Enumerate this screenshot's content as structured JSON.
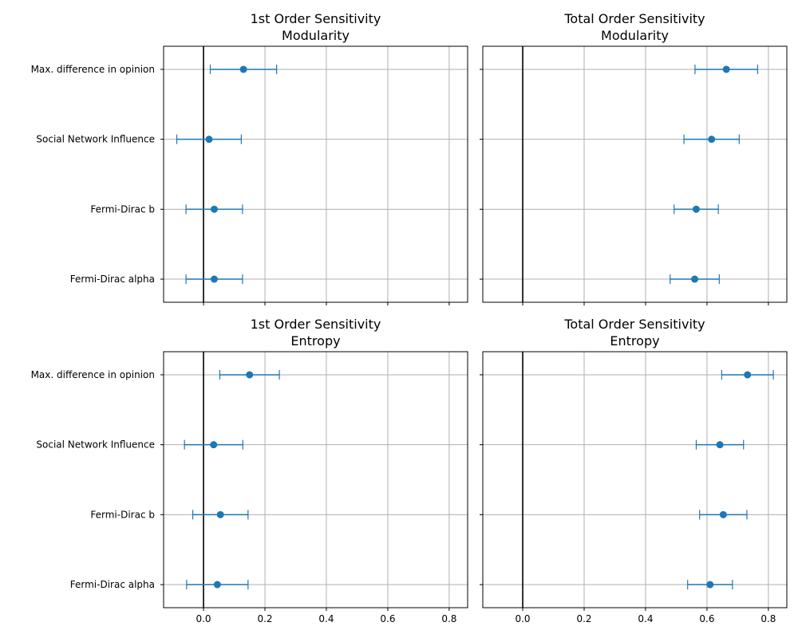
{
  "chart_data": [
    {
      "type": "scatter",
      "title": "1st Order Sensitivity",
      "subtitle": "Modularity",
      "xlim": [
        -0.13,
        0.86
      ],
      "xticks": [
        0.0,
        0.2,
        0.4,
        0.6,
        0.8
      ],
      "xtick_labels": [],
      "categories": [
        "Fermi-Dirac alpha",
        "Fermi-Dirac b",
        "Social Network Influence",
        "Max. difference in opinion"
      ],
      "category_labels_shown": true,
      "values": [
        0.035,
        0.035,
        0.018,
        0.13
      ],
      "error": [
        0.092,
        0.092,
        0.105,
        0.108
      ],
      "reference_line": 0,
      "grid": true,
      "color": "#1f77b4"
    },
    {
      "type": "scatter",
      "title": "Total Order Sensitivity",
      "subtitle": "Modularity",
      "xlim": [
        -0.13,
        0.86
      ],
      "xticks": [
        0.0,
        0.2,
        0.4,
        0.6,
        0.8
      ],
      "xtick_labels": [],
      "categories": [
        "Fermi-Dirac alpha",
        "Fermi-Dirac b",
        "Social Network Influence",
        "Max. difference in opinion"
      ],
      "category_labels_shown": false,
      "values": [
        0.56,
        0.565,
        0.615,
        0.663
      ],
      "error": [
        0.08,
        0.072,
        0.09,
        0.102
      ],
      "reference_line": 0,
      "grid": true,
      "color": "#1f77b4"
    },
    {
      "type": "scatter",
      "title": "1st Order Sensitivity",
      "subtitle": "Entropy",
      "xlim": [
        -0.13,
        0.86
      ],
      "xticks": [
        0.0,
        0.2,
        0.4,
        0.6,
        0.8
      ],
      "xtick_labels": [
        "0.0",
        "0.2",
        "0.4",
        "0.6",
        "0.8"
      ],
      "categories": [
        "Fermi-Dirac alpha",
        "Fermi-Dirac b",
        "Social Network Influence",
        "Max. difference in opinion"
      ],
      "category_labels_shown": true,
      "values": [
        0.045,
        0.055,
        0.033,
        0.15
      ],
      "error": [
        0.1,
        0.09,
        0.095,
        0.097
      ],
      "reference_line": 0,
      "grid": true,
      "color": "#1f77b4"
    },
    {
      "type": "scatter",
      "title": "Total Order Sensitivity",
      "subtitle": "Entropy",
      "xlim": [
        -0.13,
        0.86
      ],
      "xticks": [
        0.0,
        0.2,
        0.4,
        0.6,
        0.8
      ],
      "xtick_labels": [
        "0.0",
        "0.2",
        "0.4",
        "0.6",
        "0.8"
      ],
      "categories": [
        "Fermi-Dirac alpha",
        "Fermi-Dirac b",
        "Social Network Influence",
        "Max. difference in opinion"
      ],
      "category_labels_shown": false,
      "values": [
        0.61,
        0.653,
        0.642,
        0.732
      ],
      "error": [
        0.073,
        0.077,
        0.077,
        0.084
      ],
      "reference_line": 0,
      "grid": true,
      "color": "#1f77b4"
    }
  ]
}
